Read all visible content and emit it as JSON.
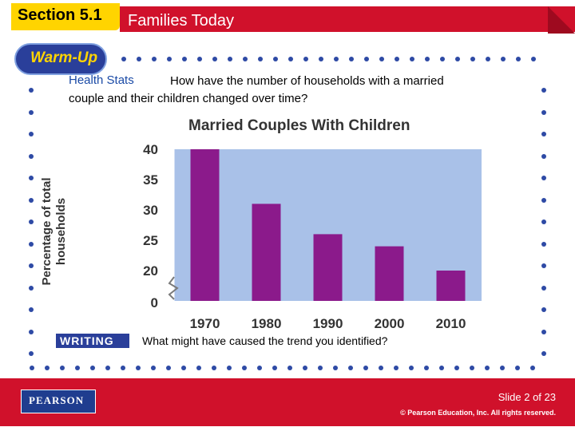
{
  "header": {
    "section": "Section 5.1",
    "title": "Families Today"
  },
  "warmup": {
    "label": "Warm-Up"
  },
  "question": {
    "heading": "Health Stats",
    "line1": "How have the number of households with a married",
    "line2": "couple and their children changed over time?"
  },
  "writing": {
    "label": "WRITING",
    "question": "What might have caused the trend you identified?"
  },
  "footer": {
    "brand": "PEARSON",
    "slide": "Slide 2 of 23",
    "copyright": "© Pearson Education, Inc. All rights reserved."
  },
  "colors": {
    "bar": "#8b1a8b",
    "plot_bg": "#a9c1e8",
    "brand_red": "#d0112b",
    "brand_blue": "#2a3f9a",
    "accent_yellow": "#ffd400"
  },
  "chart_data": {
    "type": "bar",
    "title": "Married Couples With Children",
    "ylabel": "Percentage of total households",
    "xlabel": "",
    "categories": [
      "1970",
      "1980",
      "1990",
      "2000",
      "2010"
    ],
    "values": [
      40,
      31,
      26,
      24,
      20
    ],
    "yticks": [
      "40",
      "35",
      "30",
      "25",
      "20",
      "0"
    ],
    "ylim": [
      15,
      40
    ],
    "axis_break": true,
    "grid": false
  }
}
